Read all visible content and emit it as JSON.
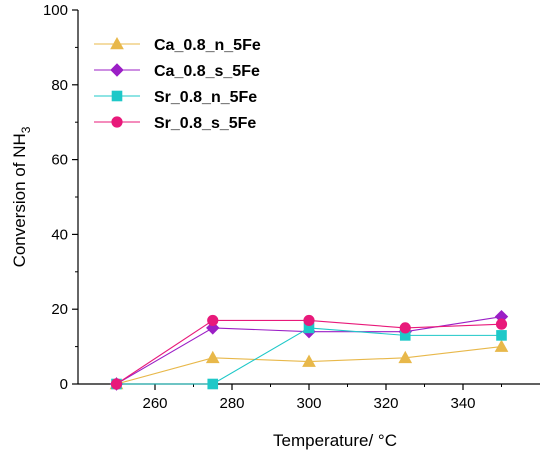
{
  "chart_data": {
    "type": "line",
    "x": [
      250,
      275,
      300,
      325,
      350
    ],
    "series": [
      {
        "name": "Ca_0.8_n_5Fe",
        "values": [
          0,
          7,
          6,
          7,
          10
        ],
        "color": "#e8b84a",
        "marker": "triangle"
      },
      {
        "name": "Ca_0.8_s_5Fe",
        "values": [
          0,
          15,
          14,
          14,
          18
        ],
        "color": "#9b1fc6",
        "marker": "diamond"
      },
      {
        "name": "Sr_0.8_n_5Fe",
        "values": [
          0,
          0,
          15,
          13,
          13
        ],
        "color": "#1ec8c8",
        "marker": "square"
      },
      {
        "name": "Sr_0.8_s_5Fe",
        "values": [
          0,
          17,
          17,
          15,
          16
        ],
        "color": "#e8197a",
        "marker": "circle"
      }
    ],
    "xlabel": "Temperature/ °C",
    "ylabel": {
      "main": "Conversion of NH",
      "subscript": "3"
    },
    "xlim": [
      240,
      360
    ],
    "ylim": [
      0,
      100
    ],
    "xticks": [
      "260",
      "280",
      "300",
      "320",
      "340"
    ],
    "yticks": [
      "0",
      "20",
      "40",
      "60",
      "80",
      "100"
    ],
    "grid": false,
    "legend": "top-left"
  }
}
